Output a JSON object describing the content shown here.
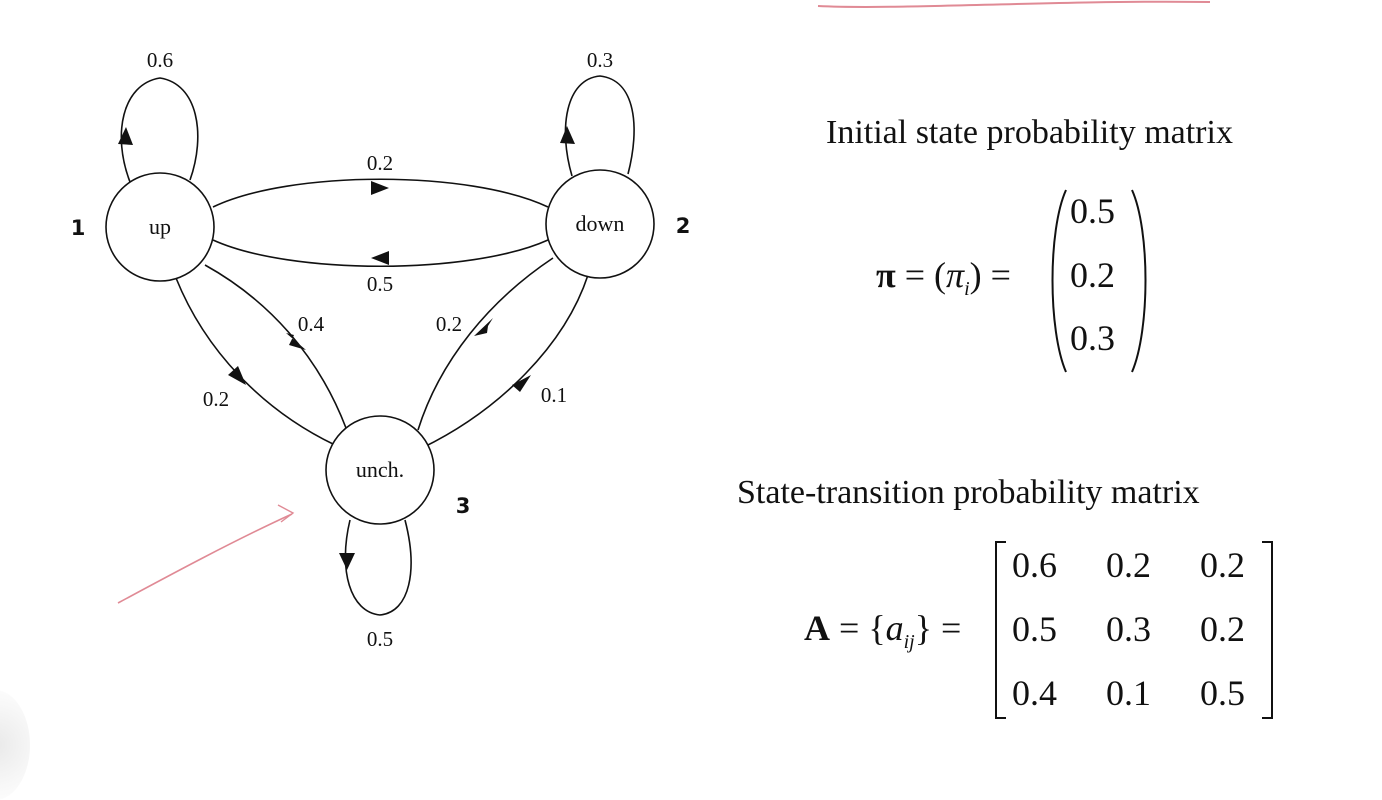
{
  "diagram": {
    "states": [
      {
        "id": "up",
        "label": "up",
        "number": "1"
      },
      {
        "id": "down",
        "label": "down",
        "number": "2"
      },
      {
        "id": "unch",
        "label": "unch.",
        "number": "3"
      }
    ],
    "transitions": {
      "up_up": "0.6",
      "down_down": "0.3",
      "unch_unch": "0.5",
      "up_down": "0.2",
      "down_up": "0.5",
      "up_unch": "0.2",
      "unch_up": "0.4",
      "down_unch": "0.2",
      "unch_down": "0.1"
    }
  },
  "initial": {
    "heading": "Initial state probability matrix",
    "lhs_symbol": "π",
    "lhs_inner_symbol": "π",
    "lhs_subscript": "i",
    "values": [
      "0.5",
      "0.2",
      "0.3"
    ]
  },
  "transition": {
    "heading": "State-transition probability matrix",
    "lhs_symbol": "A",
    "lhs_inner_symbol": "a",
    "lhs_subscript": "ij",
    "rows": [
      [
        "0.6",
        "0.2",
        "0.2"
      ],
      [
        "0.5",
        "0.3",
        "0.2"
      ],
      [
        "0.4",
        "0.1",
        "0.5"
      ]
    ]
  },
  "colors": {
    "ink": "#111111",
    "annotation": "#e08a95"
  }
}
